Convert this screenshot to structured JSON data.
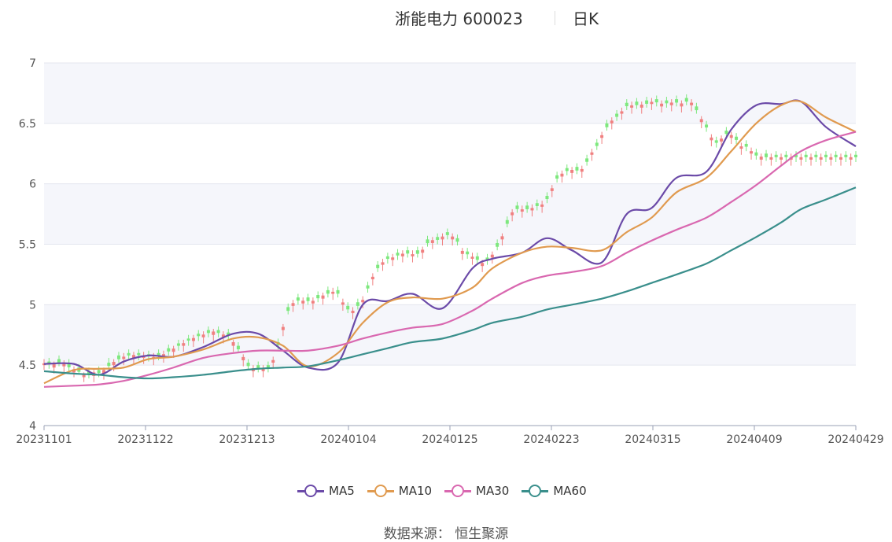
{
  "title": "浙能电力 600023",
  "subtitle": "日K",
  "source_label": "数据来源：",
  "source_name": "恒生聚源",
  "chart_data": {
    "type": "candlestick",
    "ylim": [
      4,
      7
    ],
    "yticks": [
      "4",
      "4.5",
      "5",
      "5.5",
      "6",
      "6.5",
      "7"
    ],
    "xticks": [
      "20231101",
      "20231122",
      "20231213",
      "20240104",
      "20240125",
      "20240223",
      "20240315",
      "20240409",
      "20240429"
    ],
    "grid": true,
    "legend_position": "bottom",
    "colors": {
      "up": "#f08080",
      "down": "#7ee87e",
      "MA5": "#6b4aa8",
      "MA10": "#e09a4f",
      "MA30": "#d968b0",
      "MA60": "#3a8f8c",
      "band": "#f5f6fb",
      "grid": "#e4e6ef"
    },
    "ma_series": [
      {
        "name": "MA5",
        "x": [
          0,
          6,
          11,
          16,
          21,
          26,
          32,
          38,
          43,
          48,
          53,
          59,
          64,
          69,
          74,
          80,
          86,
          90,
          96,
          101,
          106,
          112,
          117,
          122,
          127,
          133,
          138,
          143,
          148,
          152,
          157,
          163
        ],
        "values": [
          4.51,
          4.51,
          4.42,
          4.53,
          4.58,
          4.57,
          4.65,
          4.76,
          4.76,
          4.62,
          4.48,
          4.52,
          5.0,
          5.03,
          5.09,
          4.97,
          5.3,
          5.38,
          5.43,
          5.55,
          5.45,
          5.35,
          5.75,
          5.8,
          6.05,
          6.1,
          6.45,
          6.65,
          6.66,
          6.68,
          6.47,
          6.31
        ]
      },
      {
        "name": "MA10",
        "x": [
          0,
          6,
          11,
          16,
          21,
          26,
          32,
          38,
          43,
          48,
          53,
          59,
          64,
          69,
          74,
          80,
          86,
          90,
          96,
          101,
          106,
          112,
          117,
          122,
          127,
          133,
          138,
          143,
          148,
          152,
          157,
          163
        ],
        "values": [
          4.35,
          4.46,
          4.47,
          4.48,
          4.55,
          4.57,
          4.63,
          4.72,
          4.73,
          4.66,
          4.49,
          4.6,
          4.85,
          5.02,
          5.06,
          5.05,
          5.14,
          5.3,
          5.43,
          5.48,
          5.47,
          5.45,
          5.6,
          5.72,
          5.93,
          6.05,
          6.27,
          6.5,
          6.65,
          6.68,
          6.55,
          6.43
        ]
      },
      {
        "name": "MA30",
        "x": [
          0,
          6,
          11,
          16,
          21,
          26,
          32,
          38,
          43,
          48,
          53,
          59,
          64,
          69,
          74,
          80,
          86,
          90,
          96,
          101,
          106,
          112,
          117,
          122,
          127,
          133,
          138,
          143,
          148,
          152,
          157,
          163
        ],
        "values": [
          4.32,
          4.33,
          4.34,
          4.37,
          4.42,
          4.48,
          4.56,
          4.6,
          4.62,
          4.62,
          4.62,
          4.66,
          4.72,
          4.77,
          4.81,
          4.84,
          4.95,
          5.05,
          5.18,
          5.24,
          5.27,
          5.32,
          5.43,
          5.53,
          5.62,
          5.72,
          5.85,
          5.99,
          6.15,
          6.27,
          6.36,
          6.43
        ]
      },
      {
        "name": "MA60",
        "x": [
          0,
          6,
          11,
          16,
          21,
          26,
          32,
          38,
          43,
          48,
          53,
          59,
          64,
          69,
          74,
          80,
          86,
          90,
          96,
          101,
          106,
          112,
          117,
          122,
          127,
          133,
          138,
          143,
          148,
          152,
          157,
          163
        ],
        "values": [
          4.45,
          4.43,
          4.42,
          4.4,
          4.39,
          4.4,
          4.42,
          4.45,
          4.47,
          4.48,
          4.49,
          4.54,
          4.59,
          4.64,
          4.69,
          4.72,
          4.79,
          4.85,
          4.9,
          4.96,
          5.0,
          5.05,
          5.11,
          5.18,
          5.25,
          5.34,
          5.45,
          5.56,
          5.68,
          5.79,
          5.87,
          5.97
        ]
      }
    ],
    "candles": {
      "x": [
        0,
        1,
        2,
        3,
        4,
        5,
        6,
        7,
        8,
        9,
        10,
        11,
        12,
        13,
        14,
        15,
        16,
        17,
        18,
        19,
        20,
        21,
        22,
        23,
        24,
        25,
        26,
        27,
        28,
        29,
        30,
        31,
        32,
        33,
        34,
        35,
        36,
        37,
        38,
        39,
        40,
        41,
        42,
        43,
        44,
        45,
        46,
        47,
        48,
        49,
        50,
        51,
        52,
        53,
        54,
        55,
        56,
        57,
        58,
        59,
        60,
        61,
        62,
        63,
        64,
        65,
        66,
        67,
        68,
        69,
        70,
        71,
        72,
        73,
        74,
        75,
        76,
        77,
        78,
        79,
        80,
        81,
        82,
        83,
        84,
        85,
        86,
        87,
        88,
        89,
        90,
        91,
        92,
        93,
        94,
        95,
        96,
        97,
        98,
        99,
        100,
        101,
        102,
        103,
        104,
        105,
        106,
        107,
        108,
        109,
        110,
        111,
        112,
        113,
        114,
        115,
        116,
        117,
        118,
        119,
        120,
        121,
        122,
        123,
        124,
        125,
        126,
        127,
        128,
        129,
        130,
        131,
        132,
        133,
        134,
        135,
        136,
        137,
        138,
        139,
        140,
        141,
        142,
        143,
        144,
        145,
        146,
        147,
        148,
        149,
        150,
        151,
        152,
        153,
        154,
        155,
        156,
        157,
        158,
        159,
        160,
        161,
        162,
        163
      ],
      "close": [
        4.515,
        4.51,
        4.508,
        4.52,
        4.522,
        4.482,
        4.466,
        4.445,
        4.43,
        4.42,
        4.44,
        4.434,
        4.46,
        4.493,
        4.527,
        4.549,
        4.57,
        4.58,
        4.584,
        4.583,
        4.578,
        4.572,
        4.568,
        4.574,
        4.591,
        4.613,
        4.637,
        4.66,
        4.682,
        4.703,
        4.724,
        4.74,
        4.753,
        4.766,
        4.778,
        4.766,
        4.753,
        4.745,
        4.69,
        4.631,
        4.567,
        4.492,
        4.474,
        4.473,
        4.474,
        4.475,
        4.542,
        4.666,
        4.816,
        4.949,
        5.013,
        5.034,
        5.033,
        5.03,
        5.032,
        5.053,
        5.076,
        5.091,
        5.107,
        5.091,
        5.019,
        4.961,
        4.95,
        4.99,
        5.04,
        5.134,
        5.231,
        5.302,
        5.351,
        5.379,
        5.391,
        5.407,
        5.422,
        5.423,
        5.418,
        5.421,
        5.455,
        5.509,
        5.534,
        5.536,
        5.564,
        5.576,
        5.564,
        5.521,
        5.445,
        5.417,
        5.397,
        5.371,
        5.345,
        5.366,
        5.414,
        5.479,
        5.566,
        5.669,
        5.764,
        5.791,
        5.789,
        5.79,
        5.8,
        5.816,
        5.829,
        5.874,
        5.963,
        6.043,
        6.084,
        6.106,
        6.115,
        6.11,
        6.122,
        6.182,
        6.26,
        6.313,
        6.402,
        6.468,
        6.523,
        6.554,
        6.6,
        6.642,
        6.649,
        6.651,
        6.655,
        6.662,
        6.678,
        6.674,
        6.663,
        6.666,
        6.672,
        6.672,
        6.665,
        6.68,
        6.671,
        6.609,
        6.535,
        6.466,
        6.383,
        6.339,
        6.374,
        6.413,
        6.403,
        6.363,
        6.31,
        6.307,
        6.27,
        6.234,
        6.225,
        6.22,
        6.22,
        6.22,
        6.22,
        6.22,
        6.22,
        6.22,
        6.22,
        6.22,
        6.22,
        6.22,
        6.22,
        6.22,
        6.22,
        6.22,
        6.22,
        6.22,
        6.22,
        6.22
      ],
      "open": [
        4.5,
        4.53,
        4.48,
        4.55,
        4.49,
        4.51,
        4.44,
        4.48,
        4.4,
        4.45,
        4.41,
        4.46,
        4.43,
        4.52,
        4.5,
        4.58,
        4.55,
        4.6,
        4.56,
        4.6,
        4.56,
        4.59,
        4.55,
        4.6,
        4.57,
        4.64,
        4.61,
        4.68,
        4.66,
        4.72,
        4.7,
        4.76,
        4.73,
        4.79,
        4.75,
        4.79,
        4.73,
        4.77,
        4.66,
        4.66,
        4.54,
        4.52,
        4.45,
        4.5,
        4.45,
        4.5,
        4.52,
        4.69,
        4.79,
        4.98,
        4.99,
        5.06,
        5.01,
        5.06,
        5.01,
        5.08,
        5.05,
        5.12,
        5.09,
        5.12,
        5.0,
        4.99,
        4.93,
        5.02,
        5.02,
        5.16,
        5.21,
        5.33,
        5.33,
        5.4,
        5.37,
        5.43,
        5.4,
        5.45,
        5.4,
        5.45,
        5.43,
        5.54,
        5.51,
        5.56,
        5.54,
        5.6,
        5.54,
        5.55,
        5.42,
        5.44,
        5.38,
        5.4,
        5.32,
        5.39,
        5.39,
        5.51,
        5.54,
        5.7,
        5.74,
        5.82,
        5.77,
        5.82,
        5.78,
        5.84,
        5.81,
        5.9,
        5.94,
        6.07,
        6.06,
        6.13,
        6.09,
        6.14,
        6.1,
        6.21,
        6.24,
        6.34,
        6.38,
        6.5,
        6.5,
        6.58,
        6.58,
        6.67,
        6.63,
        6.68,
        6.63,
        6.69,
        6.66,
        6.7,
        6.64,
        6.69,
        6.65,
        6.7,
        6.64,
        6.71,
        6.65,
        6.64,
        6.51,
        6.49,
        6.36,
        6.36,
        6.35,
        6.44,
        6.38,
        6.39,
        6.29,
        6.33,
        6.25,
        6.26,
        6.2,
        6.25,
        6.2,
        6.24,
        6.2,
        6.24,
        6.2,
        6.24,
        6.2,
        6.24,
        6.2,
        6.24,
        6.2,
        6.24,
        6.2,
        6.24,
        6.2,
        6.24,
        6.2,
        6.24
      ],
      "high": [
        4.55,
        4.56,
        4.53,
        4.58,
        4.54,
        4.55,
        4.49,
        4.51,
        4.44,
        4.48,
        4.46,
        4.49,
        4.48,
        4.56,
        4.55,
        4.61,
        4.6,
        4.63,
        4.61,
        4.63,
        4.61,
        4.62,
        4.6,
        4.63,
        4.62,
        4.67,
        4.66,
        4.71,
        4.71,
        4.75,
        4.75,
        4.79,
        4.78,
        4.82,
        4.8,
        4.82,
        4.78,
        4.8,
        4.71,
        4.69,
        4.59,
        4.55,
        4.5,
        4.53,
        4.5,
        4.53,
        4.57,
        4.72,
        4.84,
        5.01,
        5.04,
        5.09,
        5.06,
        5.09,
        5.06,
        5.11,
        5.1,
        5.15,
        5.14,
        5.15,
        5.05,
        5.02,
        4.98,
        5.05,
        5.07,
        5.19,
        5.26,
        5.36,
        5.38,
        5.43,
        5.42,
        5.46,
        5.45,
        5.48,
        5.45,
        5.48,
        5.48,
        5.57,
        5.56,
        5.59,
        5.59,
        5.63,
        5.59,
        5.58,
        5.47,
        5.47,
        5.43,
        5.43,
        5.37,
        5.42,
        5.44,
        5.54,
        5.59,
        5.73,
        5.79,
        5.85,
        5.82,
        5.85,
        5.83,
        5.87,
        5.86,
        5.93,
        5.99,
        6.1,
        6.11,
        6.16,
        6.14,
        6.17,
        6.15,
        6.24,
        6.29,
        6.37,
        6.43,
        6.53,
        6.55,
        6.61,
        6.63,
        6.7,
        6.68,
        6.71,
        6.68,
        6.72,
        6.71,
        6.73,
        6.69,
        6.72,
        6.7,
        6.73,
        6.69,
        6.74,
        6.7,
        6.67,
        6.56,
        6.52,
        6.41,
        6.39,
        6.4,
        6.47,
        6.43,
        6.42,
        6.34,
        6.36,
        6.3,
        6.29,
        6.25,
        6.28,
        6.25,
        6.27,
        6.25,
        6.27,
        6.25,
        6.27,
        6.25,
        6.27,
        6.25,
        6.27,
        6.25,
        6.27,
        6.25,
        6.27,
        6.25,
        6.27,
        6.25,
        6.27
      ],
      "low": [
        4.46,
        4.47,
        4.43,
        4.49,
        4.44,
        4.45,
        4.4,
        4.42,
        4.36,
        4.39,
        4.36,
        4.4,
        4.38,
        4.46,
        4.45,
        4.52,
        4.5,
        4.54,
        4.51,
        4.54,
        4.51,
        4.53,
        4.5,
        4.54,
        4.52,
        4.58,
        4.56,
        4.62,
        4.61,
        4.66,
        4.65,
        4.7,
        4.68,
        4.73,
        4.7,
        4.73,
        4.68,
        4.71,
        4.61,
        4.6,
        4.49,
        4.46,
        4.4,
        4.44,
        4.4,
        4.44,
        4.47,
        4.63,
        4.74,
        4.92,
        4.94,
        5.0,
        4.96,
        5.0,
        4.96,
        5.02,
        5.0,
        5.06,
        5.04,
        5.06,
        4.95,
        4.93,
        4.88,
        4.96,
        4.97,
        5.1,
        5.16,
        5.27,
        5.28,
        5.34,
        5.32,
        5.37,
        5.35,
        5.39,
        5.35,
        5.39,
        5.38,
        5.48,
        5.46,
        5.5,
        5.49,
        5.54,
        5.49,
        5.49,
        5.37,
        5.38,
        5.33,
        5.34,
        5.27,
        5.33,
        5.34,
        5.45,
        5.49,
        5.64,
        5.69,
        5.76,
        5.72,
        5.76,
        5.73,
        5.78,
        5.76,
        5.84,
        5.89,
        6.01,
        6.01,
        6.07,
        6.04,
        6.08,
        6.05,
        6.15,
        6.19,
        6.28,
        6.33,
        6.44,
        6.45,
        6.52,
        6.53,
        6.61,
        6.58,
        6.62,
        6.58,
        6.63,
        6.61,
        6.64,
        6.59,
        6.63,
        6.6,
        6.64,
        6.59,
        6.65,
        6.6,
        6.58,
        6.46,
        6.43,
        6.31,
        6.3,
        6.3,
        6.38,
        6.33,
        6.33,
        6.24,
        6.27,
        6.2,
        6.2,
        6.15,
        6.19,
        6.15,
        6.18,
        6.15,
        6.18,
        6.15,
        6.18,
        6.15,
        6.18,
        6.15,
        6.18,
        6.15,
        6.18,
        6.15,
        6.18,
        6.15,
        6.18,
        6.15,
        6.18
      ]
    }
  }
}
